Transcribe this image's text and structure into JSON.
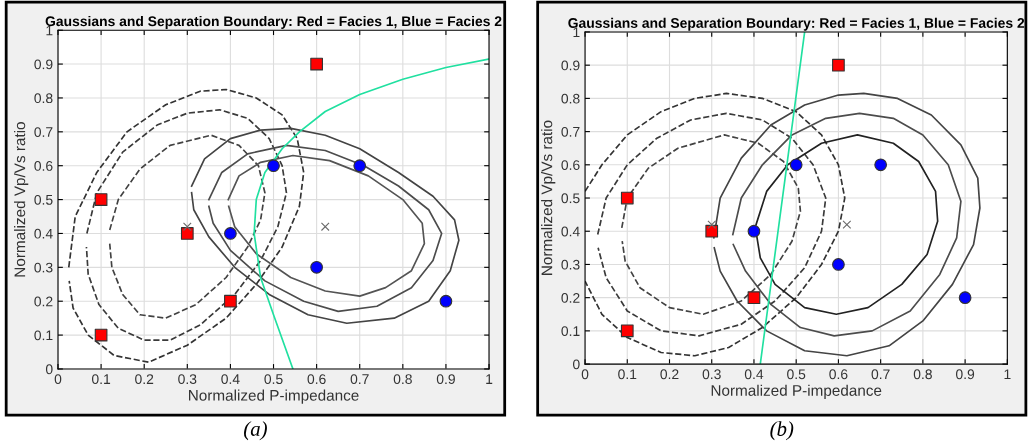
{
  "chart_data": [
    {
      "type": "scatter",
      "title": "Gaussians and Separation Boundary: Red = Facies 1, Blue = Facies 2",
      "xlabel": "Normalized P-impedance",
      "ylabel": "Normalized Vp/Vs ratio",
      "annotations": [
        "(a)"
      ],
      "xlim": [
        0,
        1
      ],
      "ylim": [
        0,
        1
      ],
      "xticks": [
        0,
        0.1,
        0.2,
        0.3,
        0.4,
        0.5,
        0.6,
        0.7,
        0.8,
        0.9,
        1
      ],
      "yticks": [
        0,
        0.1,
        0.2,
        0.3,
        0.4,
        0.5,
        0.6,
        0.7,
        0.8,
        0.9,
        1
      ],
      "grid": true,
      "legend": false,
      "series": [
        {
          "type": "line",
          "color": "#333333",
          "line_style": "dashed",
          "x": [
            0.025,
            0.04,
            0.09,
            0.16,
            0.25,
            0.33,
            0.39,
            0.46,
            0.52,
            0.555,
            0.57,
            0.56,
            0.52,
            0.46,
            0.39,
            0.3,
            0.21,
            0.13,
            0.07,
            0.035,
            0.026
          ],
          "values": [
            0.3,
            0.45,
            0.58,
            0.7,
            0.78,
            0.82,
            0.825,
            0.8,
            0.75,
            0.68,
            0.58,
            0.48,
            0.36,
            0.25,
            0.15,
            0.07,
            0.02,
            0.04,
            0.1,
            0.18,
            0.26
          ]
        },
        {
          "type": "line",
          "color": "#3a3a3a",
          "line_style": "dashed",
          "x": [
            0.067,
            0.09,
            0.15,
            0.23,
            0.3,
            0.375,
            0.44,
            0.49,
            0.52,
            0.53,
            0.51,
            0.47,
            0.41,
            0.33,
            0.26,
            0.2,
            0.14,
            0.095,
            0.07,
            0.066
          ],
          "values": [
            0.4,
            0.52,
            0.64,
            0.72,
            0.755,
            0.765,
            0.74,
            0.68,
            0.6,
            0.52,
            0.42,
            0.32,
            0.22,
            0.13,
            0.085,
            0.085,
            0.12,
            0.19,
            0.28,
            0.36
          ]
        },
        {
          "type": "line",
          "color": "#424242",
          "line_style": "dashed",
          "x": [
            0.12,
            0.14,
            0.19,
            0.26,
            0.355,
            0.42,
            0.465,
            0.48,
            0.47,
            0.44,
            0.39,
            0.32,
            0.25,
            0.19,
            0.15,
            0.125,
            0.12
          ],
          "values": [
            0.41,
            0.5,
            0.59,
            0.66,
            0.69,
            0.66,
            0.6,
            0.52,
            0.44,
            0.36,
            0.27,
            0.19,
            0.15,
            0.16,
            0.22,
            0.3,
            0.37
          ]
        },
        {
          "type": "line",
          "color": "#444444",
          "line_style": "solid",
          "x": [
            0.31,
            0.34,
            0.4,
            0.47,
            0.54,
            0.62,
            0.7,
            0.79,
            0.87,
            0.92,
            0.93,
            0.91,
            0.86,
            0.78,
            0.67,
            0.58,
            0.49,
            0.41,
            0.35,
            0.315,
            0.31
          ],
          "values": [
            0.54,
            0.62,
            0.68,
            0.705,
            0.71,
            0.69,
            0.65,
            0.58,
            0.51,
            0.44,
            0.38,
            0.29,
            0.2,
            0.15,
            0.135,
            0.16,
            0.22,
            0.3,
            0.39,
            0.47,
            0.52
          ]
        },
        {
          "type": "line",
          "color": "#4c4c4c",
          "line_style": "solid",
          "x": [
            0.35,
            0.38,
            0.44,
            0.53,
            0.62,
            0.71,
            0.79,
            0.86,
            0.89,
            0.87,
            0.82,
            0.74,
            0.65,
            0.57,
            0.48,
            0.4,
            0.36,
            0.35
          ],
          "values": [
            0.5,
            0.58,
            0.635,
            0.66,
            0.645,
            0.6,
            0.54,
            0.47,
            0.4,
            0.32,
            0.24,
            0.185,
            0.17,
            0.2,
            0.26,
            0.35,
            0.43,
            0.48
          ]
        },
        {
          "type": "line",
          "color": "#545454",
          "line_style": "solid",
          "x": [
            0.395,
            0.42,
            0.47,
            0.545,
            0.63,
            0.72,
            0.8,
            0.845,
            0.85,
            0.82,
            0.76,
            0.7,
            0.62,
            0.54,
            0.46,
            0.41,
            0.396
          ],
          "values": [
            0.5,
            0.57,
            0.61,
            0.63,
            0.615,
            0.57,
            0.5,
            0.43,
            0.37,
            0.29,
            0.24,
            0.215,
            0.23,
            0.27,
            0.34,
            0.42,
            0.48
          ]
        },
        {
          "type": "line",
          "color": "#20e0a0",
          "line_style": "solid",
          "x": [
            0.545,
            0.5,
            0.47,
            0.455,
            0.46,
            0.48,
            0.52,
            0.56,
            0.62,
            0.7,
            0.8,
            0.9,
            1.0
          ],
          "values": [
            0.0,
            0.16,
            0.27,
            0.4,
            0.5,
            0.58,
            0.65,
            0.7,
            0.76,
            0.81,
            0.855,
            0.89,
            0.915
          ]
        },
        {
          "color": "#ff0000",
          "marker": "square",
          "x": [
            0.1,
            0.1,
            0.3,
            0.4,
            0.6
          ],
          "values": [
            0.5,
            0.1,
            0.4,
            0.2,
            0.9
          ]
        },
        {
          "color": "#0000ff",
          "marker": "circle",
          "x": [
            0.5,
            0.7,
            0.4,
            0.6,
            0.9
          ],
          "values": [
            0.6,
            0.6,
            0.4,
            0.3,
            0.2
          ]
        },
        {
          "color": "#6a6a6a",
          "marker": "cross",
          "x": [
            0.3,
            0.62
          ],
          "values": [
            0.42,
            0.42
          ]
        }
      ]
    },
    {
      "type": "scatter",
      "title": "Gaussians and Separation Boundary: Red = Facies 1, Blue = Facies 2",
      "xlabel": "Normalized P-impedance",
      "ylabel": "Normalized Vp/Vs ratio",
      "annotations": [
        "(b)"
      ],
      "xlim": [
        0,
        1
      ],
      "ylim": [
        0,
        1
      ],
      "xticks": [
        0,
        0.1,
        0.2,
        0.3,
        0.4,
        0.5,
        0.6,
        0.7,
        0.8,
        0.9,
        1
      ],
      "yticks": [
        0,
        0.1,
        0.2,
        0.3,
        0.4,
        0.5,
        0.6,
        0.7,
        0.8,
        0.9,
        1
      ],
      "grid": true,
      "legend": false,
      "series": [
        {
          "type": "line",
          "color": "#333333",
          "line_style": "dashed",
          "x": [
            0.0,
            0.04,
            0.1,
            0.18,
            0.26,
            0.335,
            0.42,
            0.5,
            0.56,
            0.6,
            0.615,
            0.6,
            0.56,
            0.5,
            0.42,
            0.34,
            0.26,
            0.18,
            0.1,
            0.04,
            0.0
          ],
          "values": [
            0.52,
            0.6,
            0.69,
            0.76,
            0.8,
            0.815,
            0.8,
            0.76,
            0.69,
            0.6,
            0.5,
            0.4,
            0.3,
            0.2,
            0.11,
            0.05,
            0.025,
            0.035,
            0.08,
            0.15,
            0.25
          ]
        },
        {
          "type": "line",
          "color": "#3a3a3a",
          "line_style": "dashed",
          "x": [
            0.03,
            0.05,
            0.1,
            0.17,
            0.25,
            0.335,
            0.42,
            0.49,
            0.54,
            0.57,
            0.56,
            0.52,
            0.45,
            0.37,
            0.27,
            0.18,
            0.1,
            0.05,
            0.031
          ],
          "values": [
            0.39,
            0.5,
            0.6,
            0.68,
            0.735,
            0.755,
            0.735,
            0.68,
            0.6,
            0.5,
            0.4,
            0.29,
            0.19,
            0.12,
            0.085,
            0.1,
            0.16,
            0.26,
            0.35
          ]
        },
        {
          "type": "line",
          "color": "#424242",
          "line_style": "dashed",
          "x": [
            0.087,
            0.1,
            0.15,
            0.22,
            0.33,
            0.41,
            0.47,
            0.505,
            0.51,
            0.49,
            0.44,
            0.37,
            0.28,
            0.2,
            0.13,
            0.095,
            0.088
          ],
          "values": [
            0.41,
            0.5,
            0.59,
            0.65,
            0.69,
            0.665,
            0.61,
            0.53,
            0.46,
            0.37,
            0.27,
            0.19,
            0.15,
            0.17,
            0.23,
            0.31,
            0.37
          ]
        },
        {
          "type": "line",
          "color": "#444444",
          "line_style": "solid",
          "x": [
            0.305,
            0.32,
            0.37,
            0.44,
            0.52,
            0.6,
            0.66,
            0.74,
            0.82,
            0.89,
            0.93,
            0.935,
            0.92,
            0.87,
            0.8,
            0.72,
            0.62,
            0.52,
            0.43,
            0.36,
            0.32,
            0.306
          ],
          "values": [
            0.38,
            0.5,
            0.62,
            0.72,
            0.78,
            0.81,
            0.815,
            0.8,
            0.75,
            0.66,
            0.56,
            0.47,
            0.36,
            0.24,
            0.13,
            0.055,
            0.025,
            0.04,
            0.1,
            0.19,
            0.28,
            0.35
          ]
        },
        {
          "type": "line",
          "color": "#4c4c4c",
          "line_style": "solid",
          "x": [
            0.35,
            0.37,
            0.42,
            0.49,
            0.57,
            0.65,
            0.73,
            0.8,
            0.86,
            0.89,
            0.88,
            0.84,
            0.77,
            0.68,
            0.59,
            0.51,
            0.44,
            0.38,
            0.351
          ],
          "values": [
            0.39,
            0.5,
            0.6,
            0.69,
            0.74,
            0.755,
            0.74,
            0.69,
            0.6,
            0.49,
            0.38,
            0.27,
            0.16,
            0.1,
            0.085,
            0.11,
            0.18,
            0.28,
            0.36
          ]
        },
        {
          "type": "line",
          "color": "#222222",
          "line_style": "solid",
          "x": [
            0.405,
            0.43,
            0.48,
            0.56,
            0.645,
            0.73,
            0.79,
            0.83,
            0.835,
            0.81,
            0.75,
            0.67,
            0.595,
            0.52,
            0.45,
            0.415,
            0.406
          ],
          "values": [
            0.42,
            0.52,
            0.6,
            0.665,
            0.69,
            0.665,
            0.61,
            0.52,
            0.43,
            0.33,
            0.24,
            0.17,
            0.15,
            0.17,
            0.24,
            0.32,
            0.39
          ]
        },
        {
          "type": "line",
          "color": "#20e0a0",
          "line_style": "solid",
          "x": [
            0.415,
            0.52
          ],
          "values": [
            0.0,
            1.0
          ]
        },
        {
          "color": "#ff0000",
          "marker": "square",
          "x": [
            0.1,
            0.1,
            0.3,
            0.4,
            0.6
          ],
          "values": [
            0.5,
            0.1,
            0.4,
            0.2,
            0.9
          ]
        },
        {
          "color": "#0000ff",
          "marker": "circle",
          "x": [
            0.5,
            0.7,
            0.4,
            0.6,
            0.9
          ],
          "values": [
            0.6,
            0.6,
            0.4,
            0.3,
            0.2
          ]
        },
        {
          "color": "#6a6a6a",
          "marker": "cross",
          "x": [
            0.3,
            0.62
          ],
          "values": [
            0.42,
            0.42
          ]
        }
      ]
    }
  ]
}
